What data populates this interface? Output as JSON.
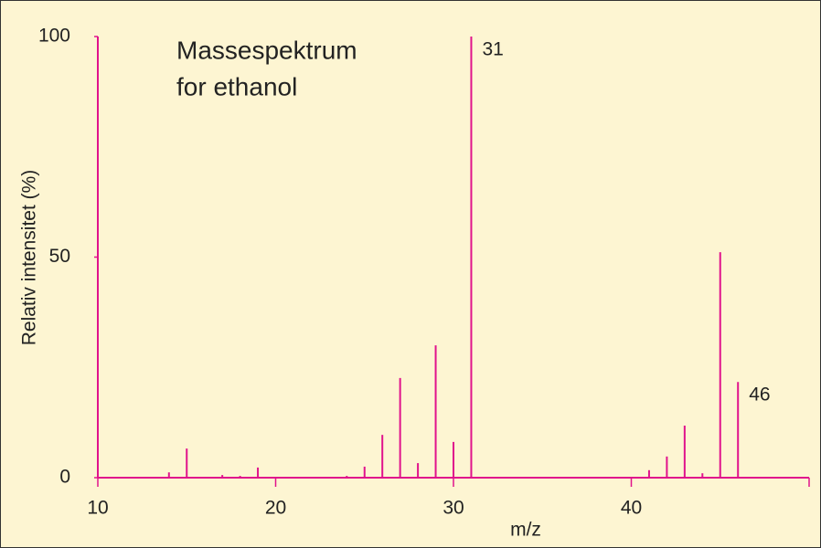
{
  "chart_data": {
    "type": "stick",
    "title": [
      "Massespektrum",
      "for ethanol"
    ],
    "xlabel": "m/z",
    "ylabel": "Relativ intensitet (%)",
    "x": [
      14,
      15,
      17,
      18,
      19,
      24,
      25,
      26,
      27,
      28,
      29,
      30,
      31,
      41,
      42,
      43,
      44,
      45,
      46
    ],
    "values": [
      1.2,
      6.6,
      0.6,
      0.4,
      2.3,
      0.4,
      2.5,
      9.7,
      22.6,
      3.3,
      30,
      8.1,
      100,
      1.7,
      4.8,
      11.8,
      1,
      51.1,
      21.7
    ],
    "labeled_peaks": [
      31,
      46
    ],
    "color": "#e0138c",
    "xlim": [
      10,
      50
    ],
    "xticks": [
      10,
      20,
      30,
      40
    ],
    "ylim": [
      0,
      100
    ],
    "yticks": [
      0,
      50,
      100
    ]
  }
}
